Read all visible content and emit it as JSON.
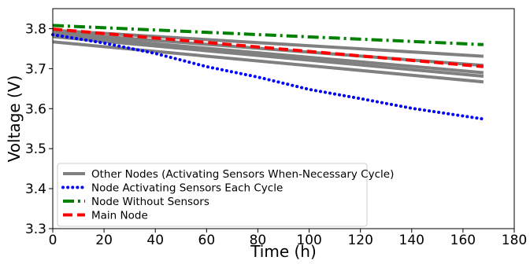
{
  "chart_data": {
    "type": "line",
    "xlabel": "Time (h)",
    "ylabel": "Voltage (V)",
    "xlim": [
      0,
      180
    ],
    "ylim": [
      3.3,
      3.85
    ],
    "xticks": [
      0,
      20,
      40,
      60,
      80,
      100,
      120,
      140,
      160,
      180
    ],
    "yticks": [
      3.3,
      3.4,
      3.5,
      3.6,
      3.7,
      3.8
    ],
    "xtick_labels": [
      "0",
      "20",
      "40",
      "60",
      "80",
      "100",
      "120",
      "140",
      "160",
      "180"
    ],
    "ytick_labels": [
      "3.3",
      "3.4",
      "3.5",
      "3.6",
      "3.7",
      "3.8"
    ],
    "grid": false,
    "legend_position": "lower-left",
    "series": [
      {
        "name": "Other Nodes (Activating Sensors When-Necessary Cycle)",
        "color": "#808080",
        "style": "solid",
        "x": [
          0,
          168
        ],
        "y": [
          3.796,
          3.731
        ]
      },
      {
        "name": "",
        "color": "#808080",
        "style": "solid",
        "x": [
          0,
          168
        ],
        "y": [
          3.79,
          3.708
        ]
      },
      {
        "name": "",
        "color": "#808080",
        "style": "solid",
        "x": [
          0,
          168
        ],
        "y": [
          3.785,
          3.69
        ]
      },
      {
        "name": "",
        "color": "#808080",
        "style": "solid",
        "x": [
          0,
          168
        ],
        "y": [
          3.78,
          3.681
        ]
      },
      {
        "name": "",
        "color": "#808080",
        "style": "solid",
        "x": [
          0,
          168
        ],
        "y": [
          3.767,
          3.667
        ]
      },
      {
        "name": "Node Activating Sensors Each Cycle",
        "color": "#0000ff",
        "style": "dotted",
        "x": [
          0,
          20,
          40,
          60,
          80,
          100,
          120,
          140,
          168
        ],
        "y": [
          3.785,
          3.764,
          3.738,
          3.705,
          3.679,
          3.648,
          3.625,
          3.601,
          3.574
        ]
      },
      {
        "name": "Node Without Sensors",
        "color": "#008000",
        "style": "dashdot",
        "x": [
          0,
          168
        ],
        "y": [
          3.808,
          3.76
        ]
      },
      {
        "name": "Main Node",
        "color": "#ff0000",
        "style": "dashed",
        "x": [
          0,
          168
        ],
        "y": [
          3.799,
          3.705
        ]
      }
    ]
  }
}
